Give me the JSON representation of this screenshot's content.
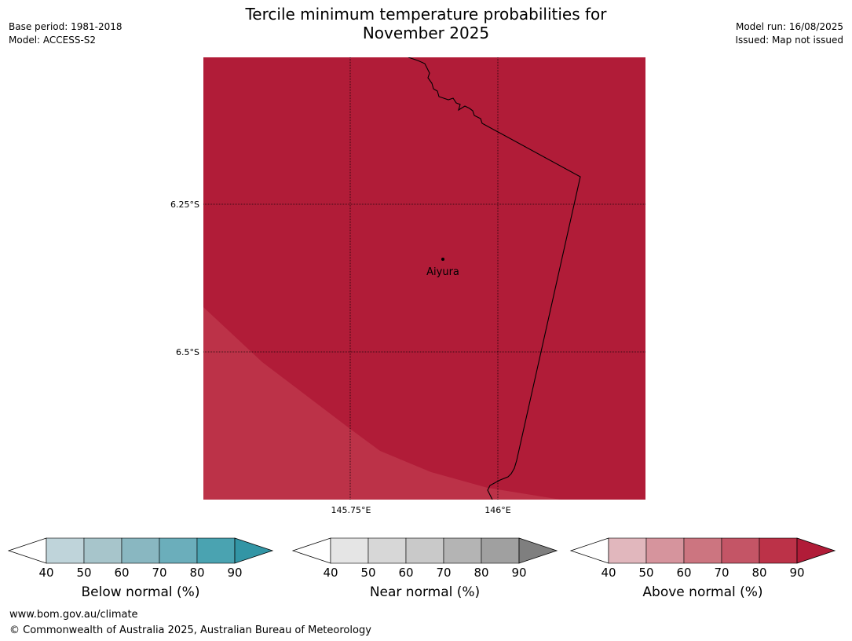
{
  "header": {
    "title_line1": "Tercile minimum temperature probabilities for",
    "title_line2": "November 2025",
    "base_period": "Base period: 1981-2018",
    "model": "Model: ACCESS-S2",
    "model_run": "Model run: 16/08/2025",
    "issued": "Issued: Map not issued"
  },
  "map": {
    "place_label": "Aiyura",
    "lat_ticks": [
      "6.25°S",
      "6.5°S"
    ],
    "lon_ticks": [
      "145.75°E",
      "146°E"
    ],
    "fill_colors": {
      "above_90": "#b11c38",
      "above_80": "#bc3248"
    }
  },
  "legends": [
    {
      "label": "Below normal (%)",
      "ticks": [
        "40",
        "50",
        "60",
        "70",
        "80",
        "90"
      ],
      "colors": [
        "#bfd4da",
        "#a7c5cb",
        "#89b7c1",
        "#6baebb",
        "#4aa3b1",
        "#3295a5"
      ]
    },
    {
      "label": "Near normal (%)",
      "ticks": [
        "40",
        "50",
        "60",
        "70",
        "80",
        "90"
      ],
      "colors": [
        "#e5e5e5",
        "#d7d7d7",
        "#c9c9c9",
        "#b4b4b4",
        "#a0a0a0",
        "#7f7f7f"
      ]
    },
    {
      "label": "Above normal (%)",
      "ticks": [
        "40",
        "50",
        "60",
        "70",
        "80",
        "90"
      ],
      "colors": [
        "#e1b7bd",
        "#d6949d",
        "#cc7580",
        "#c45566",
        "#bc3248",
        "#b11c38"
      ]
    }
  ],
  "footer": {
    "url": "www.bom.gov.au/climate",
    "copyright": "© Commonwealth of Australia 2025, Australian Bureau of Meteorology"
  }
}
